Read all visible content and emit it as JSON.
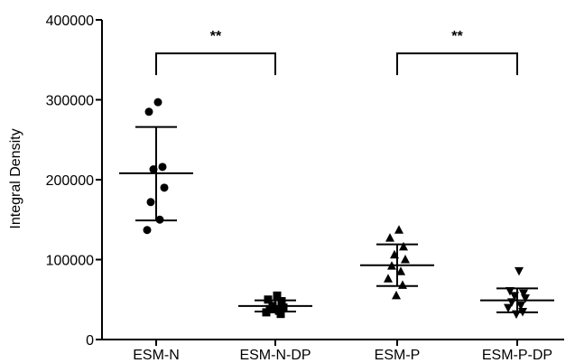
{
  "chart_data": {
    "type": "scatter",
    "ylabel": "Integral Density",
    "xlabel": "",
    "ylim": [
      0,
      400000
    ],
    "yticks": [
      0,
      100000,
      200000,
      300000,
      400000
    ],
    "ytick_labels": [
      "0",
      "100000",
      "200000",
      "300000",
      "400000"
    ],
    "categories": [
      "ESM-N",
      "ESM-N-DP",
      "ESM-P",
      "ESM-P-DP"
    ],
    "series": [
      {
        "category": "ESM-N",
        "marker": "circle",
        "points": [
          297000,
          285000,
          216000,
          213000,
          190000,
          172000,
          150000,
          137000
        ],
        "mean": 208000,
        "sd_upper": 266000,
        "sd_lower": 149000
      },
      {
        "category": "ESM-N-DP",
        "marker": "square",
        "points": [
          55000,
          50000,
          48000,
          42000,
          40000,
          38000,
          36000,
          34000,
          32000,
          38000
        ],
        "mean": 42000,
        "sd_upper": 49000,
        "sd_lower": 35000
      },
      {
        "category": "ESM-P",
        "marker": "triangle-up",
        "points": [
          137000,
          127000,
          116000,
          106000,
          100000,
          92000,
          85000,
          76000,
          68000,
          55000
        ],
        "mean": 93000,
        "sd_upper": 119000,
        "sd_lower": 67000
      },
      {
        "category": "ESM-P-DP",
        "marker": "triangle-down",
        "points": [
          86000,
          61000,
          58000,
          55000,
          52000,
          47000,
          43000,
          40000,
          35000,
          32000
        ],
        "mean": 49000,
        "sd_upper": 64000,
        "sd_lower": 34000
      }
    ],
    "annotations": [
      {
        "label": "**",
        "from": "ESM-N",
        "to": "ESM-N-DP",
        "y": 358000
      },
      {
        "label": "**",
        "from": "ESM-P",
        "to": "ESM-P-DP",
        "y": 358000
      }
    ]
  }
}
